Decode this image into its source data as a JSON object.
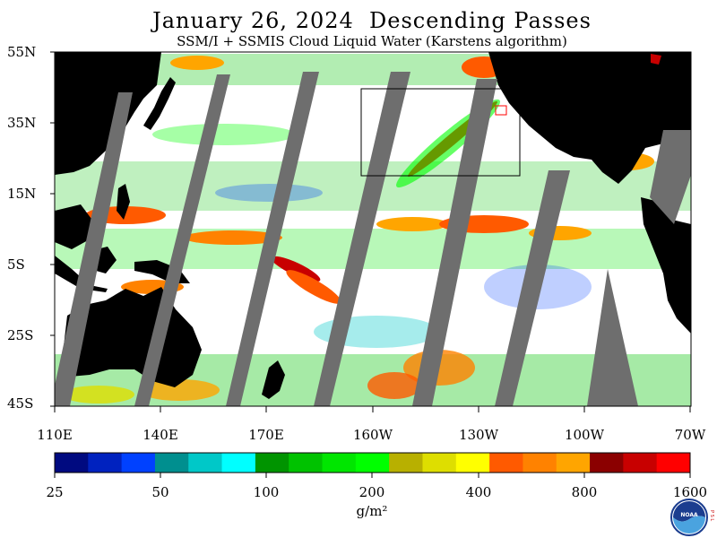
{
  "header": {
    "title": "January 26, 2024  Descending Passes",
    "subtitle": "SSM/I + SSMIS Cloud Liquid Water (Karstens algorithm)"
  },
  "axes": {
    "lat_labels": [
      "55N",
      "35N",
      "15N",
      "5S",
      "25S",
      "45S"
    ],
    "lon_labels": [
      "110E",
      "140E",
      "170E",
      "160W",
      "130W",
      "100W",
      "70W"
    ]
  },
  "colorbar": {
    "colors": [
      "#000a80",
      "#0022bf",
      "#0041ff",
      "#008f8f",
      "#00c8c8",
      "#00ffff",
      "#009400",
      "#00c200",
      "#00e600",
      "#00ff00",
      "#b8b000",
      "#dede00",
      "#ffff00",
      "#ff5a00",
      "#ff8200",
      "#ffa500",
      "#8b0000",
      "#c80000",
      "#ff0000"
    ],
    "tick_labels": [
      "25",
      "50",
      "100",
      "200",
      "400",
      "800",
      "1600"
    ],
    "units": "g/m²"
  },
  "legend_colors": {
    "land": "#000000",
    "no_data": "#6e6e6e",
    "clear": "#ffffff"
  },
  "logo": {
    "icon": "noaa-logo-icon",
    "side_text": "P S L"
  }
}
